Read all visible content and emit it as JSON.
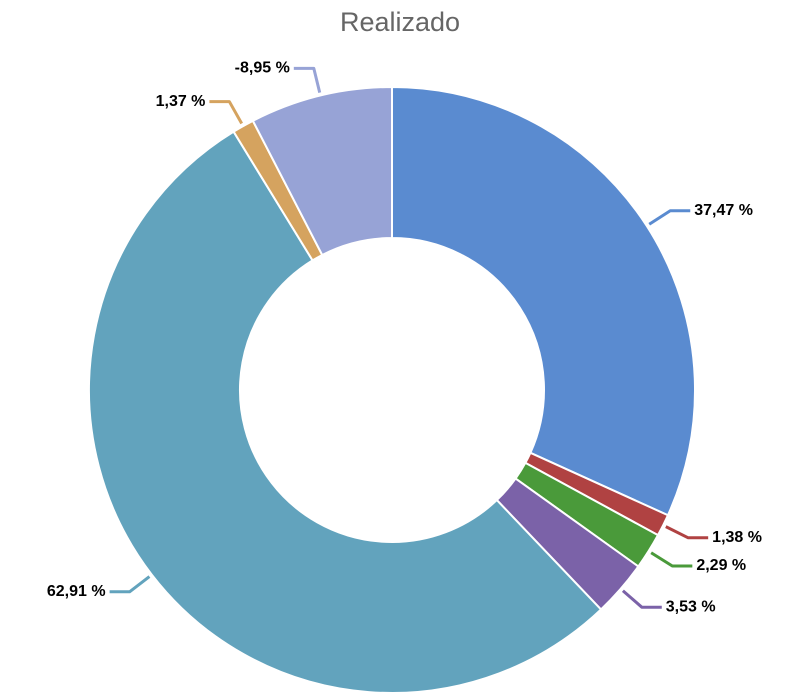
{
  "chart_data": {
    "type": "donut",
    "title": "Realizado",
    "values": [
      37.47,
      1.38,
      2.29,
      3.53,
      62.91,
      1.37,
      -8.95
    ],
    "value_labels": [
      "37,47 %",
      "1,38 %",
      "2,29 %",
      "3,53 %",
      "62,91 %",
      "1,37 %",
      "-8,95 %"
    ],
    "colors": [
      "#5a8bd0",
      "#b04242",
      "#4a9a3a",
      "#7b62a8",
      "#62a3bd",
      "#d5a35f",
      "#97a3d6"
    ]
  }
}
